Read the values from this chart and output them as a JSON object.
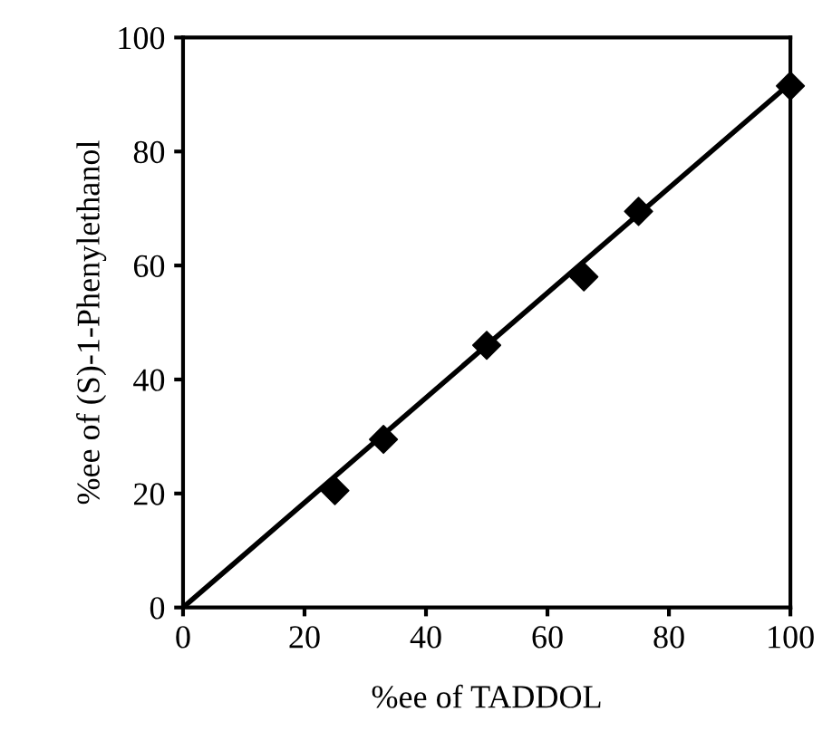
{
  "chart_data": {
    "type": "scatter",
    "xlabel": "%ee of TADDOL",
    "ylabel": "%ee of (S)-1-Phenylethanol",
    "xlim": [
      0,
      100
    ],
    "ylim": [
      0,
      100
    ],
    "xticks": [
      0,
      20,
      40,
      60,
      80,
      100
    ],
    "yticks": [
      0,
      20,
      40,
      60,
      80,
      100
    ],
    "grid": false,
    "series": [
      {
        "color": "#000000",
        "marker": "diamond",
        "x": [
          25,
          33,
          50,
          66,
          75,
          100
        ],
        "values": [
          20.5,
          29.5,
          46,
          58,
          69.5,
          91.5
        ]
      },
      {
        "type": "line",
        "color": "#000000",
        "marker": "none",
        "line_style": "solid",
        "x": [
          0,
          100
        ],
        "values": [
          0,
          92
        ]
      }
    ]
  }
}
